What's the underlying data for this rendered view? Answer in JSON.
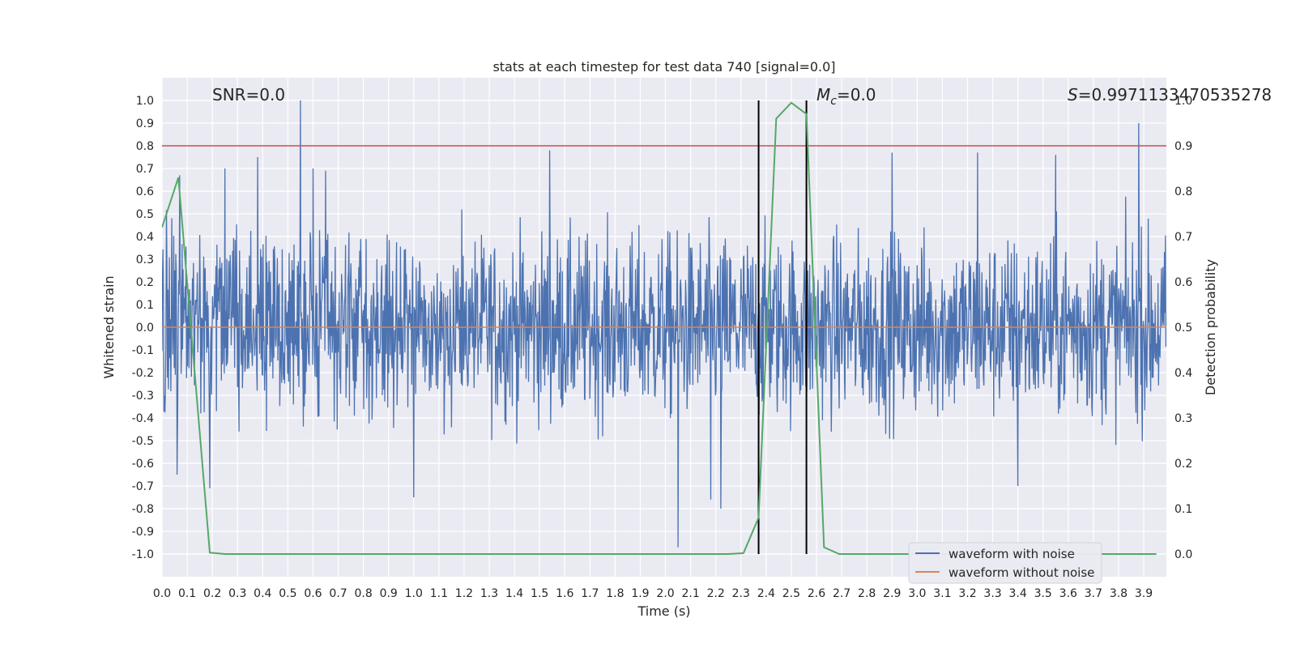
{
  "chart_data": {
    "type": "line",
    "title": "stats at each timestep for test data 740 [signal=0.0]",
    "xlabel": "Time (s)",
    "ylabel": "Whitened strain",
    "y2label": "Detection probability",
    "xlim": [
      0.0,
      3.99
    ],
    "ylim": [
      -1.1,
      1.1
    ],
    "y2lim": [
      -0.05,
      1.05
    ],
    "x_ticks": [
      "0.0",
      "0.1",
      "0.2",
      "0.3",
      "0.4",
      "0.5",
      "0.6",
      "0.7",
      "0.8",
      "0.9",
      "1.0",
      "1.1",
      "1.2",
      "1.3",
      "1.4",
      "1.5",
      "1.6",
      "1.7",
      "1.8",
      "1.9",
      "2.0",
      "2.1",
      "2.2",
      "2.3",
      "2.4",
      "2.5",
      "2.6",
      "2.7",
      "2.8",
      "2.9",
      "3.0",
      "3.1",
      "3.2",
      "3.3",
      "3.4",
      "3.5",
      "3.6",
      "3.7",
      "3.8",
      "3.9"
    ],
    "y_ticks": [
      "1.0",
      "0.9",
      "0.8",
      "0.7",
      "0.6",
      "0.5",
      "0.4",
      "0.3",
      "0.2",
      "0.1",
      "0.0",
      "-0.1",
      "-0.2",
      "-0.3",
      "-0.4",
      "-0.5",
      "-0.6",
      "-0.7",
      "-0.8",
      "-0.9",
      "-1.0"
    ],
    "y2_ticks": [
      "1.0",
      "0.9",
      "0.8",
      "0.7",
      "0.6",
      "0.5",
      "0.4",
      "0.3",
      "0.2",
      "0.1",
      "0.0"
    ],
    "grid": true,
    "annotations": {
      "snr": "SNR=0.0",
      "mc_symbol": "M",
      "mc_sub": "c",
      "mc_value": "=0.0",
      "s_symbol": "S",
      "s_value": "=0.9971133470535278"
    },
    "legend": {
      "placement": "lower-right",
      "entries": [
        "waveform with noise",
        "waveform without noise"
      ]
    },
    "threshold_y2": 0.9,
    "vertical_lines_x": [
      2.37,
      2.56
    ],
    "noisy_series": {
      "name": "waveform with noise",
      "color": "#4c72b0",
      "samples": 2048,
      "typical_amplitude": 0.2,
      "spikes": [
        {
          "x": 0.55,
          "y": 1.0
        },
        {
          "x": 0.38,
          "y": 0.75
        },
        {
          "x": 0.25,
          "y": 0.7
        },
        {
          "x": 0.6,
          "y": 0.7
        },
        {
          "x": 0.65,
          "y": 0.69
        },
        {
          "x": 0.07,
          "y": 0.67
        },
        {
          "x": 1.54,
          "y": 0.78
        },
        {
          "x": 3.88,
          "y": 0.9
        },
        {
          "x": 3.55,
          "y": 0.76
        },
        {
          "x": 3.24,
          "y": 0.77
        },
        {
          "x": 2.9,
          "y": 0.77
        },
        {
          "x": 2.05,
          "y": -0.97
        },
        {
          "x": 1.0,
          "y": -0.75
        },
        {
          "x": 2.18,
          "y": -0.76
        },
        {
          "x": 2.22,
          "y": -0.8
        },
        {
          "x": 3.4,
          "y": -0.7
        },
        {
          "x": 0.19,
          "y": -0.71
        },
        {
          "x": 0.06,
          "y": -0.65
        }
      ]
    },
    "clean_series": {
      "name": "waveform without noise",
      "color": "#dd8452",
      "x": [
        0.0,
        3.99
      ],
      "y": [
        0.0,
        0.0
      ]
    },
    "probability_series": {
      "name": "detection probability",
      "color": "#55a868",
      "x": [
        0.0,
        0.065,
        0.19,
        0.25,
        2.25,
        2.31,
        2.37,
        2.44,
        2.5,
        2.56,
        2.63,
        2.69,
        3.95
      ],
      "y": [
        0.72,
        0.83,
        0.003,
        0.0,
        0.0,
        0.002,
        0.08,
        0.96,
        0.995,
        0.97,
        0.015,
        0.0,
        0.0
      ]
    },
    "colors": {
      "plot_bg": "#eaeaf2",
      "grid": "#ffffff",
      "threshold": "#c44e52",
      "vline": "#000000"
    }
  }
}
